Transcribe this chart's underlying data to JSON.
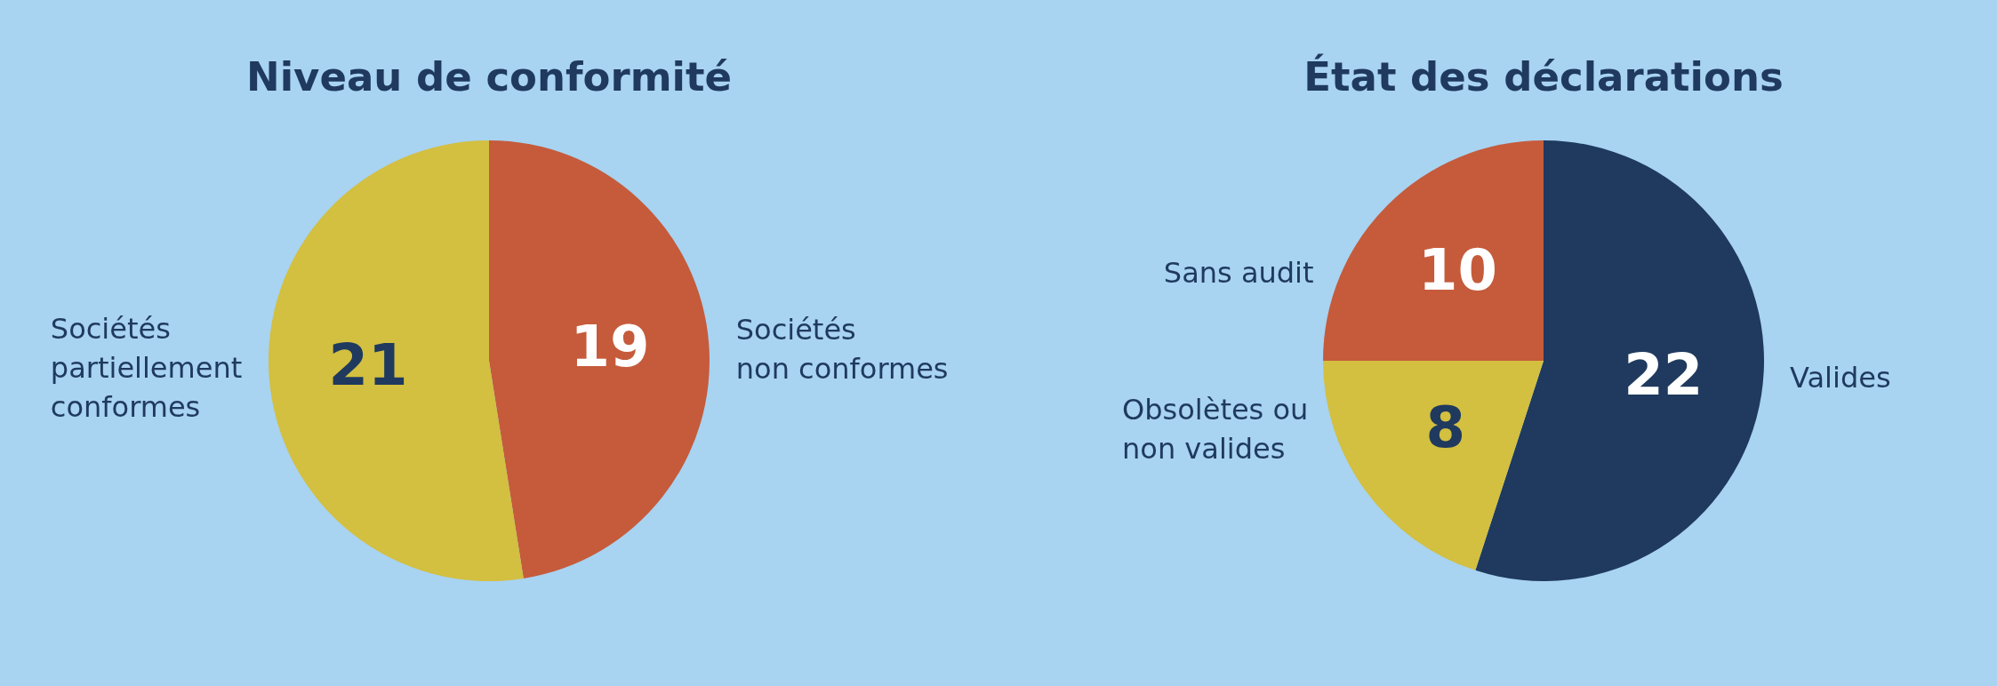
{
  "chart_data": [
    {
      "type": "pie",
      "title": "Niveau de conformité",
      "categories": [
        "Sociétés\nnon conformes",
        "Sociétés\npartiellement\nconformes"
      ],
      "values": [
        19,
        21
      ],
      "colors": [
        "#c55b3b",
        "#d3bf40"
      ],
      "data_labels": true
    },
    {
      "type": "pie",
      "title": "État des déclarations",
      "categories": [
        "Valides",
        "Obsolètes ou\nnon valides",
        "Sans audit"
      ],
      "values": [
        22,
        8,
        10
      ],
      "colors": [
        "#1f3a5e",
        "#d3bf40",
        "#c55b3b"
      ],
      "data_labels": true
    }
  ]
}
